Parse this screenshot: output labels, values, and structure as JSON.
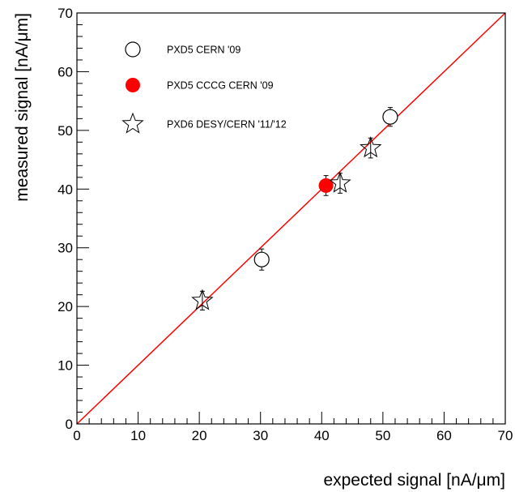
{
  "chart_data": {
    "type": "scatter",
    "title": "",
    "xlabel": "expected signal [nA/μm]",
    "ylabel": "measured signal [nA/μm]",
    "xlim": [
      0,
      70
    ],
    "ylim": [
      0,
      70
    ],
    "xticks": [
      0,
      10,
      20,
      30,
      40,
      50,
      60,
      70
    ],
    "yticks": [
      0,
      10,
      20,
      30,
      40,
      50,
      60,
      70
    ],
    "grid": false,
    "legend_position": "top-left",
    "reference_line": {
      "x": [
        0,
        70
      ],
      "y": [
        0,
        70
      ],
      "color": "#ff0000"
    },
    "series": [
      {
        "name": "PXD5 CERN '09",
        "marker": "open-circle",
        "color": "#000000",
        "points": [
          {
            "x": 30.2,
            "y": 28.0,
            "yerr": 1.8
          },
          {
            "x": 51.2,
            "y": 52.3,
            "yerr": 1.6
          }
        ]
      },
      {
        "name": "PXD5 CCCG CERN '09",
        "marker": "filled-circle",
        "color": "#ff0000",
        "points": [
          {
            "x": 40.7,
            "y": 40.6,
            "yerr": 1.7
          }
        ]
      },
      {
        "name": "PXD6 DESY/CERN '11/'12",
        "marker": "open-star",
        "color": "#000000",
        "points": [
          {
            "x": 20.5,
            "y": 21.0,
            "yerr": 1.6
          },
          {
            "x": 43.0,
            "y": 41.0,
            "yerr": 1.7
          },
          {
            "x": 48.0,
            "y": 47.0,
            "yerr": 1.7
          }
        ]
      }
    ]
  }
}
